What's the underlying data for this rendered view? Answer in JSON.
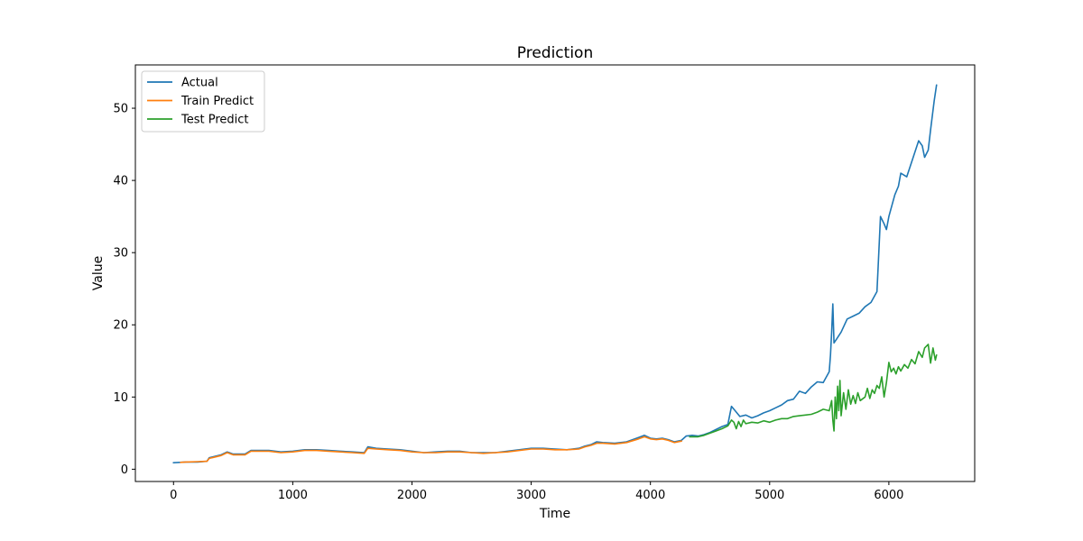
{
  "chart_data": {
    "type": "line",
    "title": "Prediction",
    "xlabel": "Time",
    "ylabel": "Value",
    "xlim": [
      -320,
      6720
    ],
    "ylim": [
      -1.7,
      56.0
    ],
    "xticks": [
      0,
      1000,
      2000,
      3000,
      4000,
      5000,
      6000
    ],
    "yticks": [
      0,
      10,
      20,
      30,
      40,
      50
    ],
    "grid": false,
    "legend_position": "top-left",
    "series": [
      {
        "name": "Actual",
        "color": "#1f77b4",
        "points": [
          [
            0,
            0.9
          ],
          [
            100,
            1.0
          ],
          [
            200,
            1.0
          ],
          [
            280,
            1.1
          ],
          [
            300,
            1.6
          ],
          [
            350,
            1.8
          ],
          [
            400,
            2.0
          ],
          [
            450,
            2.4
          ],
          [
            500,
            2.1
          ],
          [
            600,
            2.1
          ],
          [
            650,
            2.6
          ],
          [
            700,
            2.6
          ],
          [
            800,
            2.6
          ],
          [
            900,
            2.4
          ],
          [
            1000,
            2.5
          ],
          [
            1100,
            2.7
          ],
          [
            1200,
            2.7
          ],
          [
            1300,
            2.6
          ],
          [
            1400,
            2.5
          ],
          [
            1500,
            2.4
          ],
          [
            1600,
            2.3
          ],
          [
            1630,
            3.1
          ],
          [
            1700,
            2.9
          ],
          [
            1800,
            2.8
          ],
          [
            1900,
            2.7
          ],
          [
            2000,
            2.5
          ],
          [
            2100,
            2.3
          ],
          [
            2200,
            2.4
          ],
          [
            2300,
            2.5
          ],
          [
            2400,
            2.5
          ],
          [
            2500,
            2.3
          ],
          [
            2600,
            2.3
          ],
          [
            2700,
            2.3
          ],
          [
            2800,
            2.5
          ],
          [
            2900,
            2.7
          ],
          [
            3000,
            2.9
          ],
          [
            3100,
            2.9
          ],
          [
            3200,
            2.8
          ],
          [
            3300,
            2.7
          ],
          [
            3400,
            2.9
          ],
          [
            3450,
            3.2
          ],
          [
            3500,
            3.4
          ],
          [
            3550,
            3.8
          ],
          [
            3600,
            3.7
          ],
          [
            3700,
            3.6
          ],
          [
            3800,
            3.8
          ],
          [
            3900,
            4.4
          ],
          [
            3950,
            4.7
          ],
          [
            4000,
            4.3
          ],
          [
            4050,
            4.2
          ],
          [
            4100,
            4.3
          ],
          [
            4150,
            4.1
          ],
          [
            4200,
            3.8
          ],
          [
            4260,
            4.0
          ],
          [
            4300,
            4.6
          ],
          [
            4350,
            4.7
          ],
          [
            4400,
            4.6
          ],
          [
            4450,
            4.8
          ],
          [
            4500,
            5.1
          ],
          [
            4550,
            5.5
          ],
          [
            4600,
            5.9
          ],
          [
            4650,
            6.2
          ],
          [
            4680,
            8.7
          ],
          [
            4700,
            8.3
          ],
          [
            4750,
            7.3
          ],
          [
            4800,
            7.5
          ],
          [
            4850,
            7.1
          ],
          [
            4900,
            7.4
          ],
          [
            4950,
            7.8
          ],
          [
            5000,
            8.1
          ],
          [
            5050,
            8.5
          ],
          [
            5100,
            8.9
          ],
          [
            5150,
            9.5
          ],
          [
            5200,
            9.7
          ],
          [
            5250,
            10.8
          ],
          [
            5300,
            10.5
          ],
          [
            5350,
            11.4
          ],
          [
            5400,
            12.1
          ],
          [
            5450,
            12.0
          ],
          [
            5500,
            13.5
          ],
          [
            5510,
            15.8
          ],
          [
            5520,
            19.0
          ],
          [
            5530,
            22.9
          ],
          [
            5540,
            17.5
          ],
          [
            5560,
            18.0
          ],
          [
            5600,
            19.0
          ],
          [
            5650,
            20.8
          ],
          [
            5700,
            21.2
          ],
          [
            5750,
            21.6
          ],
          [
            5800,
            22.5
          ],
          [
            5850,
            23.1
          ],
          [
            5900,
            24.6
          ],
          [
            5910,
            28.0
          ],
          [
            5920,
            31.5
          ],
          [
            5930,
            35.0
          ],
          [
            5960,
            34.0
          ],
          [
            5980,
            33.2
          ],
          [
            6000,
            35.0
          ],
          [
            6050,
            38.0
          ],
          [
            6080,
            39.2
          ],
          [
            6100,
            41.0
          ],
          [
            6150,
            40.5
          ],
          [
            6200,
            43.0
          ],
          [
            6250,
            45.5
          ],
          [
            6280,
            44.8
          ],
          [
            6300,
            43.2
          ],
          [
            6330,
            44.2
          ],
          [
            6350,
            47.0
          ],
          [
            6380,
            51.0
          ],
          [
            6400,
            53.2
          ]
        ]
      },
      {
        "name": "Train Predict",
        "color": "#ff7f0e",
        "points": [
          [
            60,
            0.95
          ],
          [
            100,
            1.0
          ],
          [
            200,
            1.05
          ],
          [
            280,
            1.1
          ],
          [
            300,
            1.5
          ],
          [
            350,
            1.7
          ],
          [
            400,
            1.9
          ],
          [
            450,
            2.3
          ],
          [
            500,
            2.0
          ],
          [
            600,
            2.0
          ],
          [
            650,
            2.5
          ],
          [
            700,
            2.5
          ],
          [
            800,
            2.5
          ],
          [
            900,
            2.3
          ],
          [
            1000,
            2.4
          ],
          [
            1100,
            2.6
          ],
          [
            1200,
            2.6
          ],
          [
            1300,
            2.5
          ],
          [
            1400,
            2.4
          ],
          [
            1500,
            2.3
          ],
          [
            1600,
            2.2
          ],
          [
            1630,
            2.9
          ],
          [
            1700,
            2.8
          ],
          [
            1800,
            2.7
          ],
          [
            1900,
            2.6
          ],
          [
            2000,
            2.4
          ],
          [
            2100,
            2.3
          ],
          [
            2200,
            2.3
          ],
          [
            2300,
            2.4
          ],
          [
            2400,
            2.4
          ],
          [
            2500,
            2.3
          ],
          [
            2600,
            2.2
          ],
          [
            2700,
            2.3
          ],
          [
            2800,
            2.4
          ],
          [
            2900,
            2.6
          ],
          [
            3000,
            2.8
          ],
          [
            3100,
            2.8
          ],
          [
            3200,
            2.7
          ],
          [
            3300,
            2.7
          ],
          [
            3400,
            2.8
          ],
          [
            3450,
            3.1
          ],
          [
            3500,
            3.3
          ],
          [
            3550,
            3.6
          ],
          [
            3600,
            3.6
          ],
          [
            3700,
            3.5
          ],
          [
            3800,
            3.7
          ],
          [
            3900,
            4.2
          ],
          [
            3950,
            4.5
          ],
          [
            4000,
            4.2
          ],
          [
            4050,
            4.1
          ],
          [
            4100,
            4.2
          ],
          [
            4150,
            4.0
          ],
          [
            4200,
            3.7
          ],
          [
            4260,
            3.9
          ]
        ]
      },
      {
        "name": "Test Predict",
        "color": "#2ca02c",
        "points": [
          [
            4330,
            4.5
          ],
          [
            4400,
            4.5
          ],
          [
            4450,
            4.7
          ],
          [
            4500,
            5.0
          ],
          [
            4550,
            5.3
          ],
          [
            4600,
            5.6
          ],
          [
            4650,
            6.0
          ],
          [
            4680,
            6.8
          ],
          [
            4700,
            6.5
          ],
          [
            4720,
            5.6
          ],
          [
            4740,
            6.6
          ],
          [
            4760,
            5.9
          ],
          [
            4780,
            6.8
          ],
          [
            4800,
            6.3
          ],
          [
            4850,
            6.5
          ],
          [
            4900,
            6.4
          ],
          [
            4950,
            6.7
          ],
          [
            5000,
            6.5
          ],
          [
            5050,
            6.8
          ],
          [
            5100,
            7.0
          ],
          [
            5150,
            7.0
          ],
          [
            5200,
            7.3
          ],
          [
            5250,
            7.4
          ],
          [
            5300,
            7.5
          ],
          [
            5350,
            7.6
          ],
          [
            5400,
            7.9
          ],
          [
            5450,
            8.3
          ],
          [
            5500,
            8.1
          ],
          [
            5520,
            9.5
          ],
          [
            5530,
            6.8
          ],
          [
            5540,
            5.3
          ],
          [
            5550,
            10.0
          ],
          [
            5560,
            7.0
          ],
          [
            5570,
            11.5
          ],
          [
            5580,
            8.1
          ],
          [
            5590,
            12.3
          ],
          [
            5600,
            7.4
          ],
          [
            5620,
            10.6
          ],
          [
            5640,
            8.3
          ],
          [
            5660,
            11.0
          ],
          [
            5680,
            9.0
          ],
          [
            5700,
            10.2
          ],
          [
            5720,
            9.1
          ],
          [
            5740,
            10.6
          ],
          [
            5760,
            9.5
          ],
          [
            5800,
            10.0
          ],
          [
            5820,
            11.2
          ],
          [
            5840,
            9.8
          ],
          [
            5860,
            11.0
          ],
          [
            5880,
            10.5
          ],
          [
            5900,
            11.6
          ],
          [
            5920,
            11.2
          ],
          [
            5940,
            12.8
          ],
          [
            5960,
            10.0
          ],
          [
            5980,
            12.0
          ],
          [
            6000,
            14.8
          ],
          [
            6020,
            13.5
          ],
          [
            6040,
            14.0
          ],
          [
            6060,
            13.2
          ],
          [
            6080,
            14.2
          ],
          [
            6100,
            13.6
          ],
          [
            6130,
            14.5
          ],
          [
            6160,
            14.0
          ],
          [
            6190,
            15.2
          ],
          [
            6220,
            14.6
          ],
          [
            6250,
            16.3
          ],
          [
            6280,
            15.5
          ],
          [
            6300,
            16.8
          ],
          [
            6330,
            17.3
          ],
          [
            6350,
            14.7
          ],
          [
            6370,
            16.8
          ],
          [
            6390,
            15.1
          ],
          [
            6400,
            15.8
          ]
        ]
      }
    ]
  }
}
